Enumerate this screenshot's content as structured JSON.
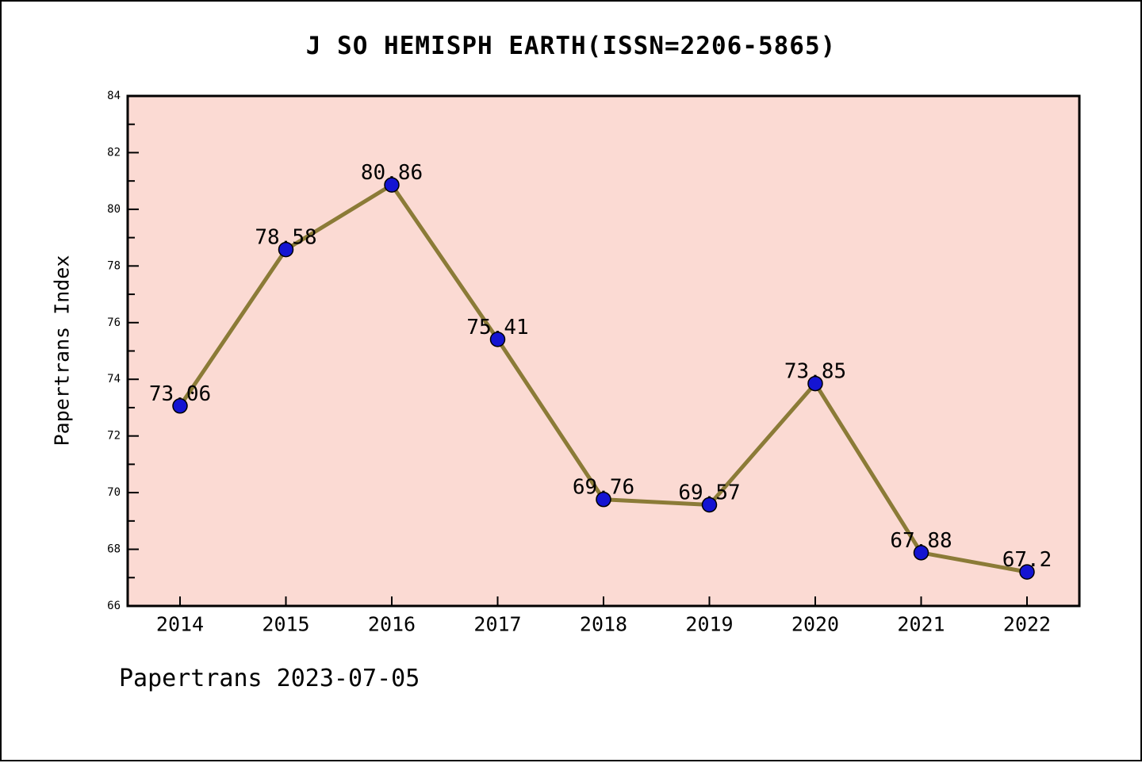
{
  "chart_data": {
    "type": "line",
    "title": "J SO HEMISPH EARTH(ISSN=2206-5865)",
    "ylabel": "Papertrans Index",
    "xlabel": "",
    "footer": "Papertrans 2023-07-05",
    "categories": [
      "2014",
      "2015",
      "2016",
      "2017",
      "2018",
      "2019",
      "2020",
      "2021",
      "2022"
    ],
    "values": [
      73.06,
      78.58,
      80.86,
      75.41,
      69.76,
      69.57,
      73.85,
      67.88,
      67.2
    ],
    "point_labels": [
      "73.06",
      "78.58",
      "80.86",
      "75.41",
      "69.76",
      "69.57",
      "73.85",
      "67.88",
      "67.2"
    ],
    "ylim": [
      66,
      84
    ],
    "ytick_major_step": 2,
    "ytick_minor_step": 1,
    "ytick_labels": [
      "66",
      "68",
      "70",
      "72",
      "74",
      "76",
      "78",
      "80",
      "82",
      "84"
    ],
    "grid": "off",
    "legend": "none",
    "colors": {
      "line": "#8b7b37",
      "marker": "#1414d2",
      "marker_edge": "#000000",
      "plot_background": "#fbdad3",
      "frame": "#000000",
      "text": "#000000",
      "figure_background": "#ffffff"
    }
  }
}
